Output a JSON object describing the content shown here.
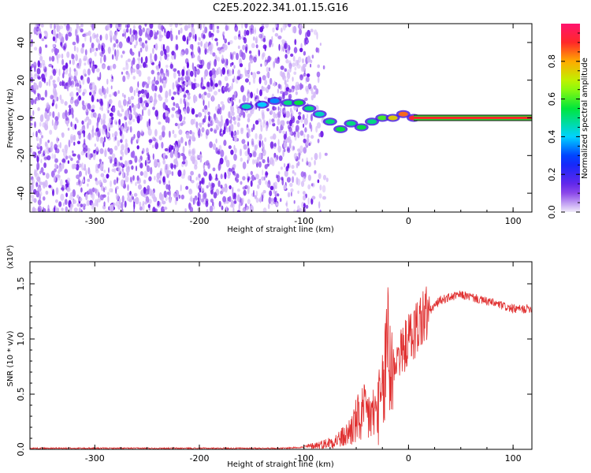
{
  "title": "C2E5.2022.341.01.15.G16",
  "chart_data": [
    {
      "type": "heatmap",
      "xlabel": "Height of straight line (km)",
      "ylabel": "Frequency (Hz)",
      "xlim": [
        -362,
        118
      ],
      "ylim": [
        -50,
        50
      ],
      "xticks": [
        "-300",
        "-200",
        "-100",
        "0",
        "100"
      ],
      "xtick_values": [
        -300,
        -200,
        -100,
        0,
        100
      ],
      "yticks": [
        "-40",
        "-20",
        "0",
        "20",
        "40"
      ],
      "ytick_values": [
        -40,
        -20,
        0,
        20,
        40
      ],
      "colorbar": {
        "label": "Normalized spectral amplitude",
        "range": [
          0,
          1
        ],
        "ticks": [
          "0.0",
          "0.2",
          "0.4",
          "0.6",
          "0.8"
        ],
        "tick_values": [
          0,
          0.2,
          0.4,
          0.6,
          0.8
        ]
      },
      "noise_region_x": [
        -362,
        -100
      ],
      "signal_trace": [
        {
          "x": -155,
          "y": 6,
          "amp": 0.45
        },
        {
          "x": -140,
          "y": 7,
          "amp": 0.4
        },
        {
          "x": -128,
          "y": 9,
          "amp": 0.35
        },
        {
          "x": -115,
          "y": 8,
          "amp": 0.5
        },
        {
          "x": -105,
          "y": 8,
          "amp": 0.55
        },
        {
          "x": -95,
          "y": 5,
          "amp": 0.5
        },
        {
          "x": -85,
          "y": 2,
          "amp": 0.45
        },
        {
          "x": -75,
          "y": -2,
          "amp": 0.5
        },
        {
          "x": -65,
          "y": -6,
          "amp": 0.55
        },
        {
          "x": -55,
          "y": -3,
          "amp": 0.5
        },
        {
          "x": -45,
          "y": -5,
          "amp": 0.55
        },
        {
          "x": -35,
          "y": -2,
          "amp": 0.5
        },
        {
          "x": -25,
          "y": 0,
          "amp": 0.6
        },
        {
          "x": -15,
          "y": 0,
          "amp": 0.75
        },
        {
          "x": -5,
          "y": 2,
          "amp": 0.85
        },
        {
          "x": 5,
          "y": 0,
          "amp": 0.9
        }
      ],
      "constant_line": {
        "x_start": 5,
        "x_end": 118,
        "y": 0,
        "amp": 0.9
      },
      "colors": {
        "noise": "#7b2ee0",
        "high": "#ff1f5a"
      }
    },
    {
      "type": "line",
      "xlabel": "Height of straight line (km)",
      "ylabel": "SNR (10 * v/v)",
      "scale_label": "(x10⁴)",
      "xlim": [
        -362,
        118
      ],
      "ylim": [
        0,
        1.7
      ],
      "xticks": [
        "-300",
        "-200",
        "-100",
        "0",
        "100"
      ],
      "xtick_values": [
        -300,
        -200,
        -100,
        0,
        100
      ],
      "yticks": [
        "0.0",
        "0.5",
        "1.0",
        "1.5"
      ],
      "ytick_values": [
        0,
        0.5,
        1.0,
        1.5
      ],
      "series": [
        {
          "color": "#e03030",
          "x": [
            -362,
            -300,
            -200,
            -120,
            -100,
            -80,
            -70,
            -60,
            -55,
            -50,
            -45,
            -40,
            -35,
            -30,
            -25,
            -22,
            -20,
            -18,
            -15,
            -10,
            -5,
            0,
            5,
            10,
            15,
            20,
            25,
            30,
            40,
            50,
            60,
            70,
            80,
            90,
            100,
            110,
            118
          ],
          "y": [
            0.01,
            0.01,
            0.01,
            0.01,
            0.02,
            0.05,
            0.08,
            0.12,
            0.18,
            0.25,
            0.3,
            0.32,
            0.3,
            0.35,
            0.45,
            0.7,
            1.2,
            0.8,
            0.75,
            0.85,
            0.9,
            1.0,
            1.05,
            1.15,
            1.2,
            1.25,
            1.3,
            1.35,
            1.38,
            1.4,
            1.38,
            1.35,
            1.33,
            1.3,
            1.27,
            1.27,
            1.28
          ]
        }
      ]
    }
  ]
}
